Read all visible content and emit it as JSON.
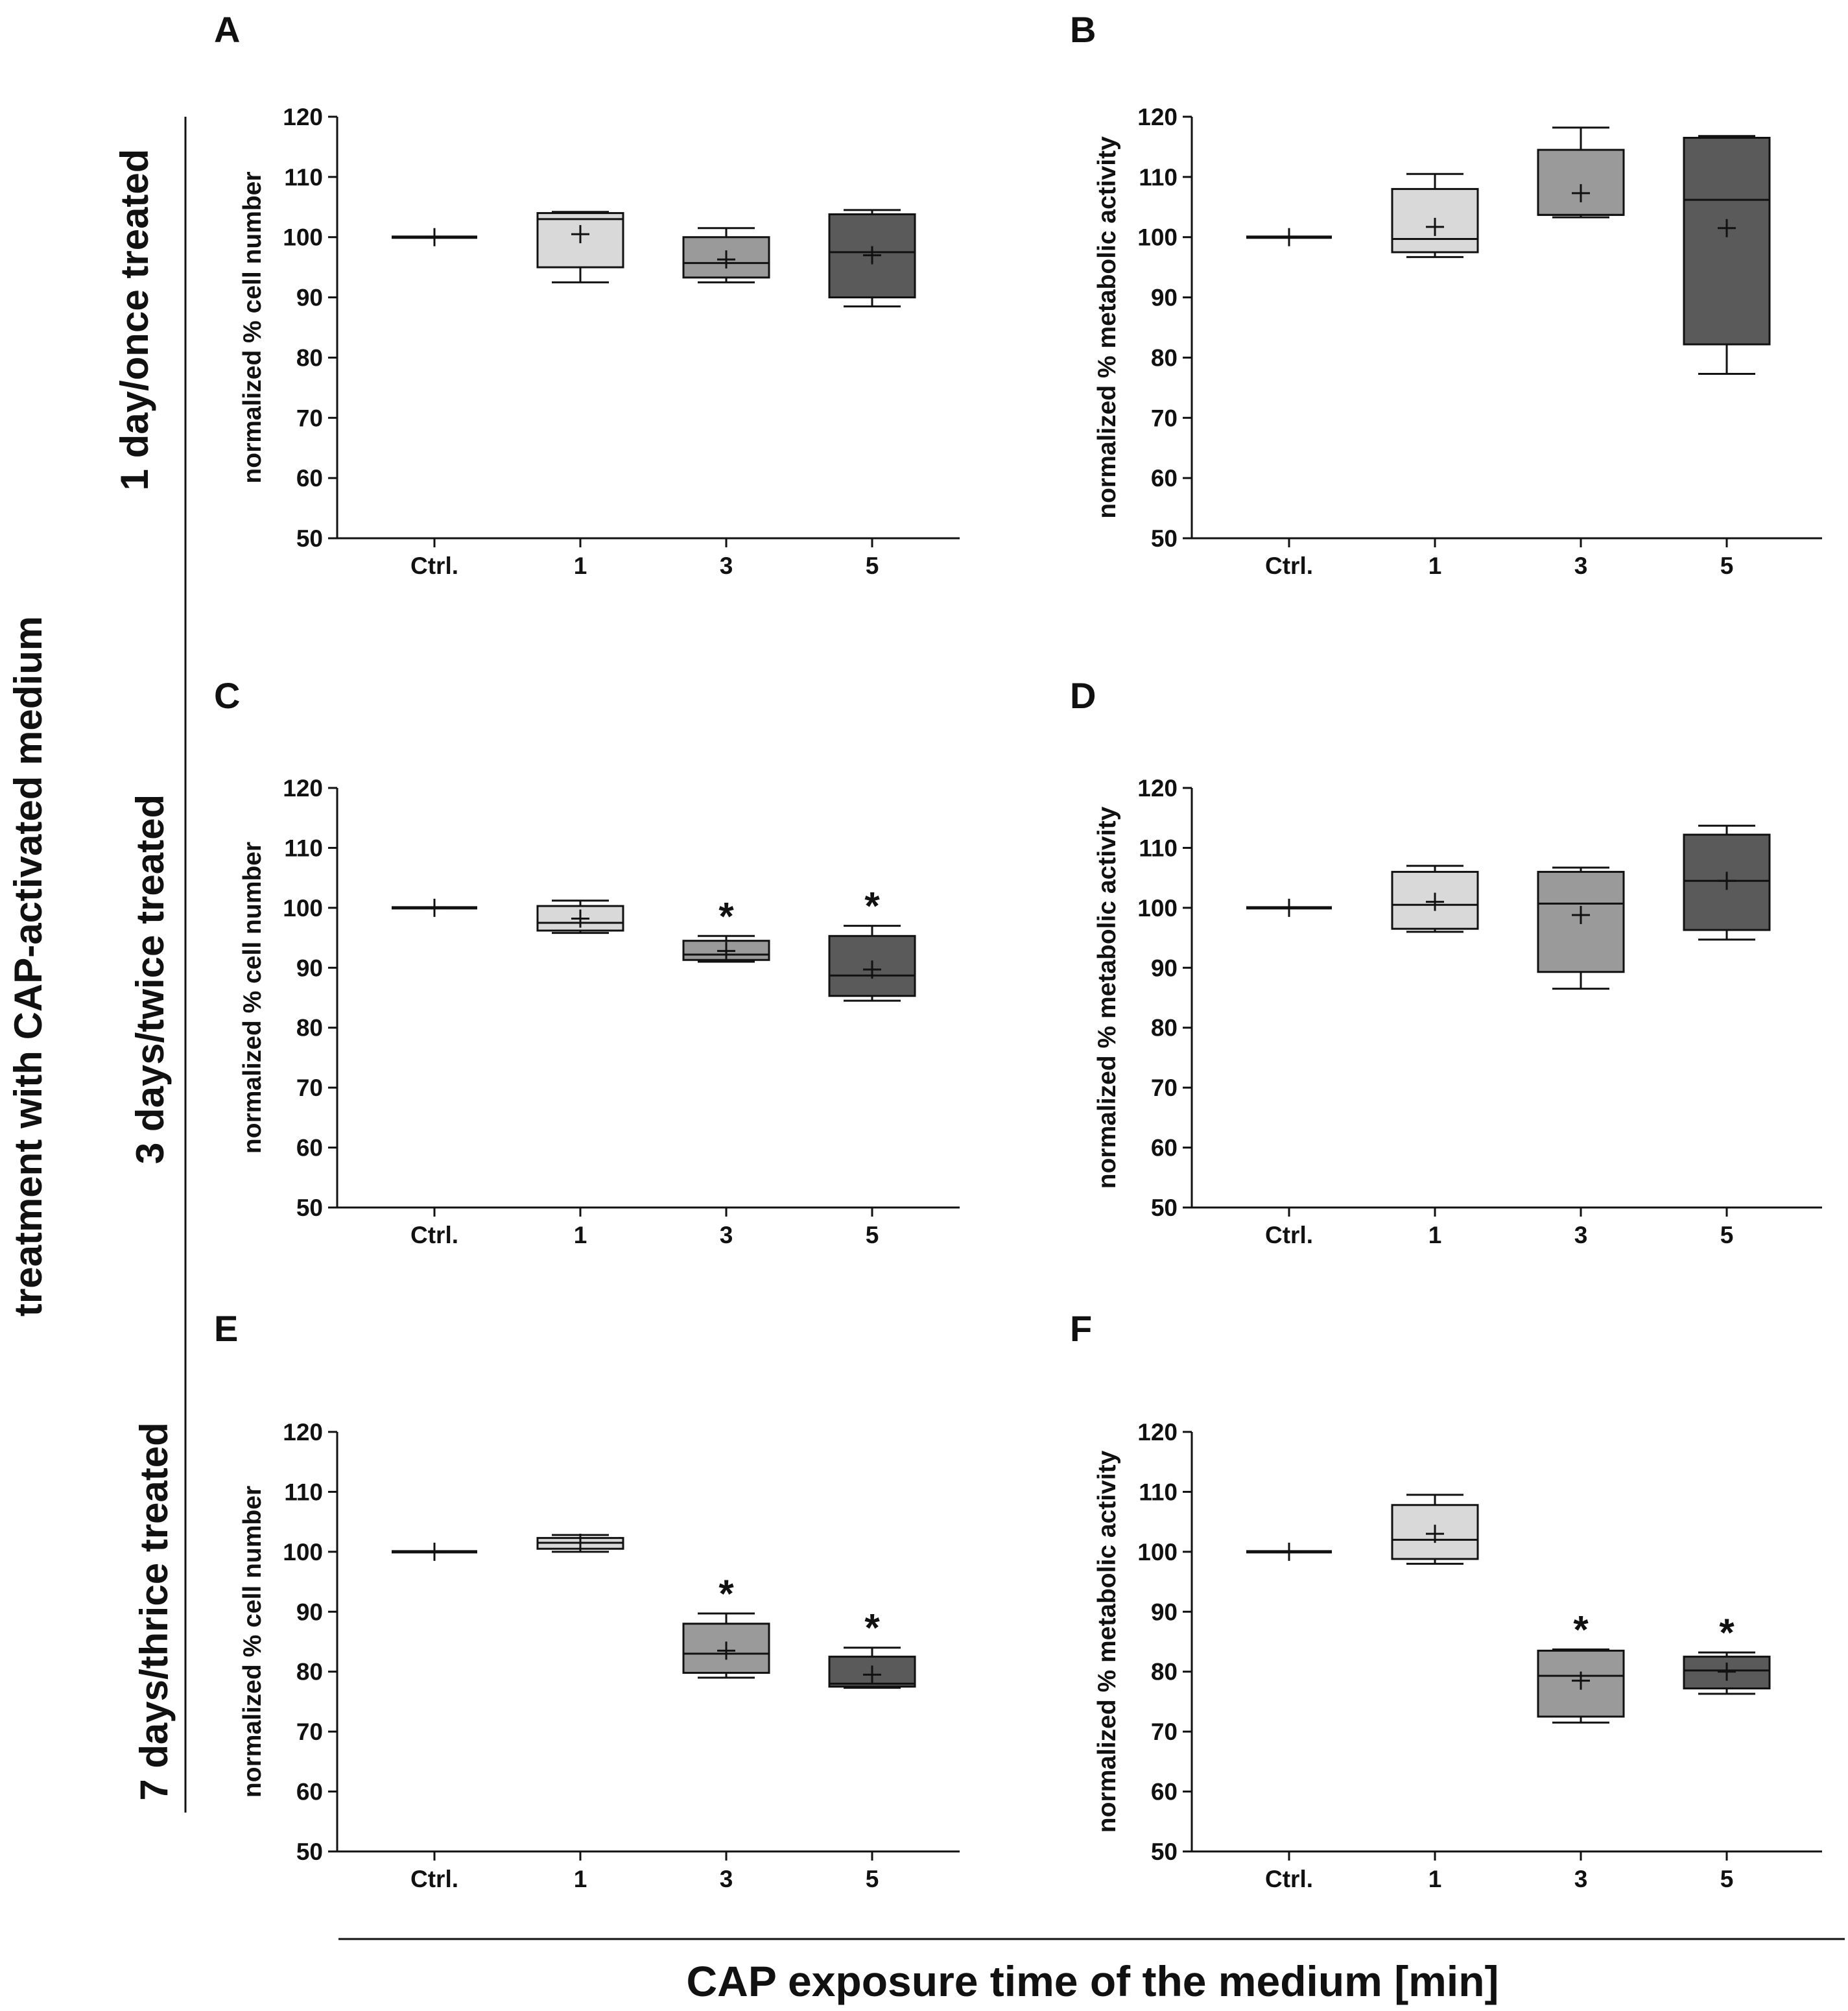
{
  "figure": {
    "side_label": "treatment with CAP-activated medium",
    "x_common_label": "CAP exposure time of the medium [min]",
    "row_labels": [
      "1 day/once treated",
      "3 days/twice treated",
      "7 days/thrice treated"
    ],
    "colors": {
      "ctrl": "#ffffff",
      "min1": "#d9d9d9",
      "min3": "#9a9a9a",
      "min5": "#5a5a5a",
      "stroke": "#111111"
    }
  },
  "chart_data": [
    {
      "panel": "A",
      "type": "box",
      "ylabel": "normalized % cell number",
      "ylim": [
        50,
        120
      ],
      "yticks": [
        50,
        60,
        70,
        80,
        90,
        100,
        110,
        120
      ],
      "categories": [
        "Ctrl.",
        "1",
        "3",
        "5"
      ],
      "boxes": [
        {
          "min": 100,
          "q1": 100,
          "median": 100,
          "q3": 100,
          "max": 100,
          "mean": 100,
          "sig": ""
        },
        {
          "min": 92.5,
          "q1": 95,
          "median": 103,
          "q3": 104,
          "max": 104.2,
          "mean": 100.5,
          "sig": ""
        },
        {
          "min": 92.5,
          "q1": 93.3,
          "median": 95.7,
          "q3": 100,
          "max": 101.5,
          "mean": 96.3,
          "sig": ""
        },
        {
          "min": 88.5,
          "q1": 90,
          "median": 97.5,
          "q3": 103.8,
          "max": 104.5,
          "mean": 97,
          "sig": ""
        }
      ]
    },
    {
      "panel": "B",
      "type": "box",
      "ylabel": "normalized % metabolic activity",
      "ylim": [
        50,
        120
      ],
      "yticks": [
        50,
        60,
        70,
        80,
        90,
        100,
        110,
        120
      ],
      "categories": [
        "Ctrl.",
        "1",
        "3",
        "5"
      ],
      "boxes": [
        {
          "min": 100,
          "q1": 100,
          "median": 100,
          "q3": 100,
          "max": 100,
          "mean": 100,
          "sig": ""
        },
        {
          "min": 96.7,
          "q1": 97.5,
          "median": 99.7,
          "q3": 108,
          "max": 110.5,
          "mean": 101.7,
          "sig": ""
        },
        {
          "min": 103.3,
          "q1": 103.7,
          "median": 103.7,
          "q3": 114.5,
          "max": 118.2,
          "mean": 107.3,
          "sig": ""
        },
        {
          "min": 77.3,
          "q1": 82.2,
          "median": 106.2,
          "q3": 116.5,
          "max": 116.8,
          "mean": 101.5,
          "sig": ""
        }
      ]
    },
    {
      "panel": "C",
      "type": "box",
      "ylabel": "normalized % cell number",
      "ylim": [
        50,
        120
      ],
      "yticks": [
        50,
        60,
        70,
        80,
        90,
        100,
        110,
        120
      ],
      "categories": [
        "Ctrl.",
        "1",
        "3",
        "5"
      ],
      "boxes": [
        {
          "min": 100,
          "q1": 100,
          "median": 100,
          "q3": 100,
          "max": 100,
          "mean": 100,
          "sig": ""
        },
        {
          "min": 95.8,
          "q1": 96.2,
          "median": 97.5,
          "q3": 100.3,
          "max": 101.2,
          "mean": 98.2,
          "sig": ""
        },
        {
          "min": 91,
          "q1": 91.3,
          "median": 92.2,
          "q3": 94.5,
          "max": 95.3,
          "mean": 92.8,
          "sig": "*"
        },
        {
          "min": 84.5,
          "q1": 85.3,
          "median": 88.7,
          "q3": 95.3,
          "max": 97,
          "mean": 89.7,
          "sig": "*"
        }
      ]
    },
    {
      "panel": "D",
      "type": "box",
      "ylabel": "normalized % metabolic activity",
      "ylim": [
        50,
        120
      ],
      "yticks": [
        50,
        60,
        70,
        80,
        90,
        100,
        110,
        120
      ],
      "categories": [
        "Ctrl.",
        "1",
        "3",
        "5"
      ],
      "boxes": [
        {
          "min": 100,
          "q1": 100,
          "median": 100,
          "q3": 100,
          "max": 100,
          "mean": 100,
          "sig": ""
        },
        {
          "min": 96,
          "q1": 96.5,
          "median": 100.5,
          "q3": 106,
          "max": 107,
          "mean": 101,
          "sig": ""
        },
        {
          "min": 86.5,
          "q1": 89.3,
          "median": 100.7,
          "q3": 106,
          "max": 106.7,
          "mean": 98.8,
          "sig": ""
        },
        {
          "min": 94.7,
          "q1": 96.3,
          "median": 104.5,
          "q3": 112.2,
          "max": 113.7,
          "mean": 104.5,
          "sig": ""
        }
      ]
    },
    {
      "panel": "E",
      "type": "box",
      "ylabel": "normalized % cell number",
      "ylim": [
        50,
        120
      ],
      "yticks": [
        50,
        60,
        70,
        80,
        90,
        100,
        110,
        120
      ],
      "categories": [
        "Ctrl.",
        "1",
        "3",
        "5"
      ],
      "boxes": [
        {
          "min": 100,
          "q1": 100,
          "median": 100,
          "q3": 100,
          "max": 100,
          "mean": 100,
          "sig": ""
        },
        {
          "min": 100,
          "q1": 100.5,
          "median": 101.5,
          "q3": 102.3,
          "max": 102.8,
          "mean": 101.5,
          "sig": ""
        },
        {
          "min": 79,
          "q1": 79.8,
          "median": 83,
          "q3": 88,
          "max": 89.7,
          "mean": 83.5,
          "sig": "*"
        },
        {
          "min": 77.3,
          "q1": 77.5,
          "median": 78,
          "q3": 82.5,
          "max": 84,
          "mean": 79.5,
          "sig": "*"
        }
      ]
    },
    {
      "panel": "F",
      "type": "box",
      "ylabel": "normalized % metabolic activity",
      "ylim": [
        50,
        120
      ],
      "yticks": [
        50,
        60,
        70,
        80,
        90,
        100,
        110,
        120
      ],
      "categories": [
        "Ctrl.",
        "1",
        "3",
        "5"
      ],
      "boxes": [
        {
          "min": 100,
          "q1": 100,
          "median": 100,
          "q3": 100,
          "max": 100,
          "mean": 100,
          "sig": ""
        },
        {
          "min": 98,
          "q1": 98.8,
          "median": 102,
          "q3": 107.8,
          "max": 109.5,
          "mean": 103,
          "sig": ""
        },
        {
          "min": 71.5,
          "q1": 72.5,
          "median": 79.3,
          "q3": 83.5,
          "max": 83.7,
          "mean": 78.5,
          "sig": "*"
        },
        {
          "min": 76.3,
          "q1": 77.2,
          "median": 80.2,
          "q3": 82.5,
          "max": 83.2,
          "mean": 80,
          "sig": "*"
        }
      ]
    }
  ]
}
